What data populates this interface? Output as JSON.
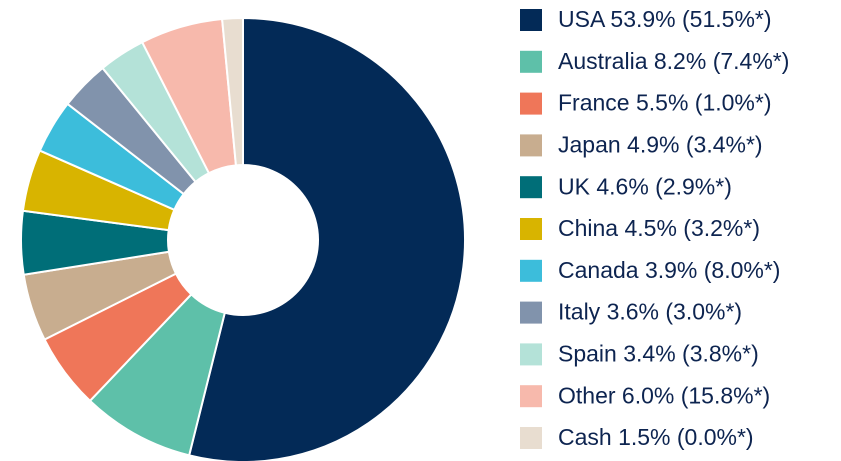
{
  "chart_data": {
    "type": "donut",
    "categories": [
      "USA 53.9% (51.5%*)",
      "Australia 8.2% (7.4%*)",
      "France 5.5% (1.0%*)",
      "Japan 4.9% (3.4%*)",
      "UK 4.6% (2.9%*)",
      "China 4.5% (3.2%*)",
      "Canada 3.9% (8.0%*)",
      "Italy 3.6% (3.0%*)",
      "Spain 3.4% (3.8%*)",
      "Other 6.0% (15.8%*)",
      "Cash 1.5% (0.0%*)"
    ],
    "values": [
      53.9,
      8.2,
      5.5,
      4.9,
      4.6,
      4.5,
      3.9,
      3.6,
      3.4,
      6.0,
      1.5
    ],
    "colors": [
      "#032a57",
      "#5ec0a9",
      "#ef7659",
      "#c8ad8f",
      "#006e78",
      "#d8b400",
      "#3cbddb",
      "#8193ac",
      "#b4e2d8",
      "#f7b9ac",
      "#e8ddd0"
    ]
  }
}
